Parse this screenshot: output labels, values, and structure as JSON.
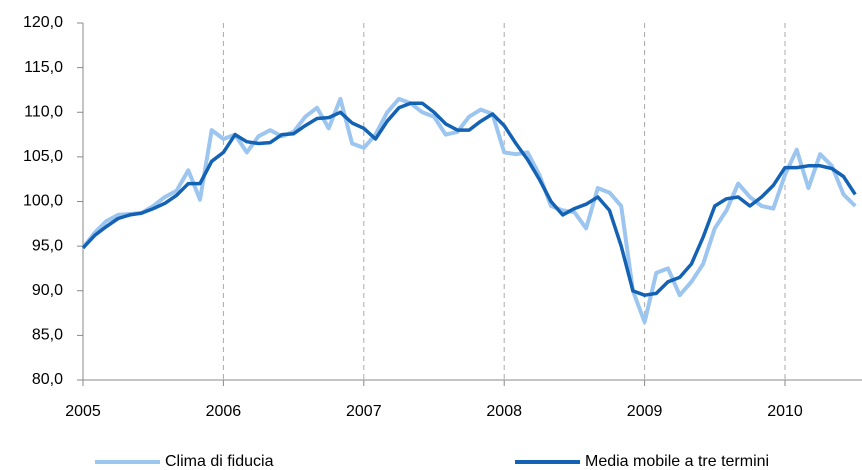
{
  "chart_data": {
    "type": "line",
    "categories": [
      "2005",
      null,
      null,
      null,
      null,
      null,
      null,
      null,
      null,
      null,
      null,
      null,
      "2006",
      null,
      null,
      null,
      null,
      null,
      null,
      null,
      null,
      null,
      null,
      null,
      "2007",
      null,
      null,
      null,
      null,
      null,
      null,
      null,
      null,
      null,
      null,
      null,
      "2008",
      null,
      null,
      null,
      null,
      null,
      null,
      null,
      null,
      null,
      null,
      null,
      "2009",
      null,
      null,
      null,
      null,
      null,
      null,
      null,
      null,
      null,
      null,
      null,
      "2010",
      null,
      null,
      null,
      null,
      null,
      null
    ],
    "series": [
      {
        "name": "Clima di fiducia",
        "color": "#9cc5ef",
        "values": [
          94.8,
          96.5,
          97.8,
          98.5,
          98.6,
          98.7,
          99.5,
          100.5,
          101.2,
          103.5,
          100.2,
          108.0,
          107.0,
          107.5,
          105.5,
          107.3,
          108.0,
          107.3,
          107.8,
          109.5,
          110.5,
          108.2,
          111.5,
          106.5,
          106.0,
          107.5,
          110.0,
          111.5,
          111.0,
          110.0,
          109.5,
          107.5,
          107.8,
          109.5,
          110.3,
          109.8,
          105.5,
          105.3,
          105.5,
          103.0,
          99.5,
          99.0,
          98.8,
          97.0,
          101.5,
          101.0,
          99.5,
          90.0,
          86.5,
          92.0,
          92.5,
          89.5,
          91.0,
          93.0,
          97.0,
          99.0,
          102.0,
          100.5,
          99.5,
          99.2,
          103.0,
          105.8,
          101.5,
          105.3,
          104.0,
          100.8,
          99.5
        ]
      },
      {
        "name": "Media mobile a tre termini",
        "color": "#1462b4",
        "values": [
          94.8,
          96.2,
          97.2,
          98.1,
          98.5,
          98.7,
          99.2,
          99.8,
          100.7,
          102.0,
          102.0,
          104.5,
          105.5,
          107.5,
          106.7,
          106.5,
          106.6,
          107.5,
          107.6,
          108.5,
          109.3,
          109.4,
          110.0,
          108.8,
          108.2,
          107.0,
          109.0,
          110.5,
          111.0,
          111.0,
          110.0,
          108.7,
          108.0,
          108.0,
          109.0,
          109.8,
          108.5,
          106.5,
          104.7,
          102.5,
          100.0,
          98.5,
          99.2,
          99.7,
          100.5,
          99.0,
          95.0,
          90.0,
          89.5,
          89.7,
          91.0,
          91.5,
          93.0,
          96.0,
          99.5,
          100.3,
          100.5,
          99.5,
          100.5,
          101.8,
          103.8,
          103.8,
          104.0,
          104.0,
          103.7,
          102.8,
          100.8
        ]
      }
    ],
    "ylim": [
      80,
      120
    ],
    "yticks": [
      {
        "value": 80,
        "label": "80,0"
      },
      {
        "value": 85,
        "label": "85,0"
      },
      {
        "value": 90,
        "label": "90,0"
      },
      {
        "value": 95,
        "label": "95,0"
      },
      {
        "value": 100,
        "label": "100,0"
      },
      {
        "value": 105,
        "label": "105,0"
      },
      {
        "value": 110,
        "label": "110,0"
      },
      {
        "value": 115,
        "label": "115,0"
      },
      {
        "value": 120,
        "label": "120,0"
      }
    ],
    "grid": "x",
    "legend": "bottom"
  }
}
